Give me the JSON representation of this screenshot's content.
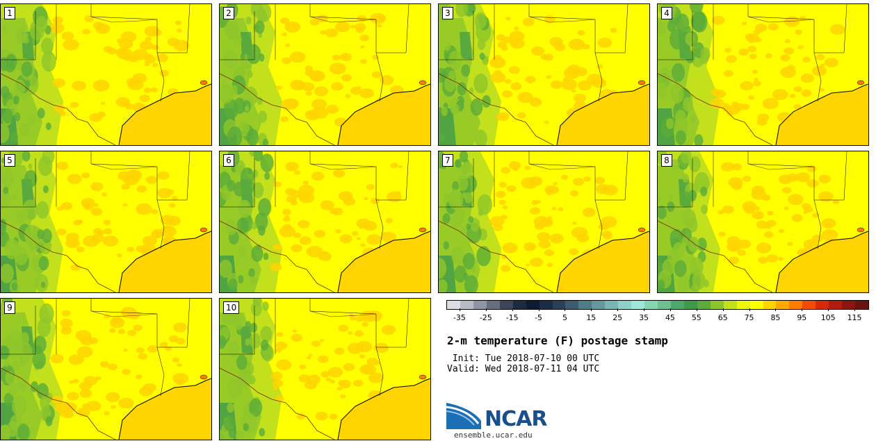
{
  "panels": [
    {
      "label": "1"
    },
    {
      "label": "2"
    },
    {
      "label": "3"
    },
    {
      "label": "4"
    },
    {
      "label": "5"
    },
    {
      "label": "6"
    },
    {
      "label": "7"
    },
    {
      "label": "8"
    },
    {
      "label": "9"
    },
    {
      "label": "10"
    }
  ],
  "colorbar": {
    "colors": [
      "#dcdde4",
      "#b9bbc5",
      "#8f95a2",
      "#676f7e",
      "#3c4658",
      "#1e2a40",
      "#0c1c33",
      "#1a2d45",
      "#2a4058",
      "#3a5c6e",
      "#4f7c87",
      "#66999e",
      "#7cb6b4",
      "#8fd1c8",
      "#9ee8d8",
      "#86d4b0",
      "#6cc18e",
      "#4ea86b",
      "#3d9a4a",
      "#5aab3a",
      "#8ec52a",
      "#c3e01c",
      "#ecf70e",
      "#ffff00",
      "#ffd400",
      "#ffaa00",
      "#ff7b00",
      "#f04c06",
      "#d6290b",
      "#b11c0f",
      "#8c1510",
      "#6a1410"
    ],
    "tick_labels": [
      "-35",
      "-25",
      "-15",
      "-5",
      "5",
      "15",
      "25",
      "35",
      "45",
      "55",
      "65",
      "75",
      "85",
      "95",
      "105",
      "115"
    ],
    "range": [
      -40,
      120
    ]
  },
  "title": "2-m temperature (F) postage stamp",
  "init": " Init: Tue 2018-07-10 00 UTC",
  "valid": "Valid: Wed 2018-07-11 04 UTC",
  "logo_text": "NCAR",
  "website": "ensemble.ucar.edu"
}
